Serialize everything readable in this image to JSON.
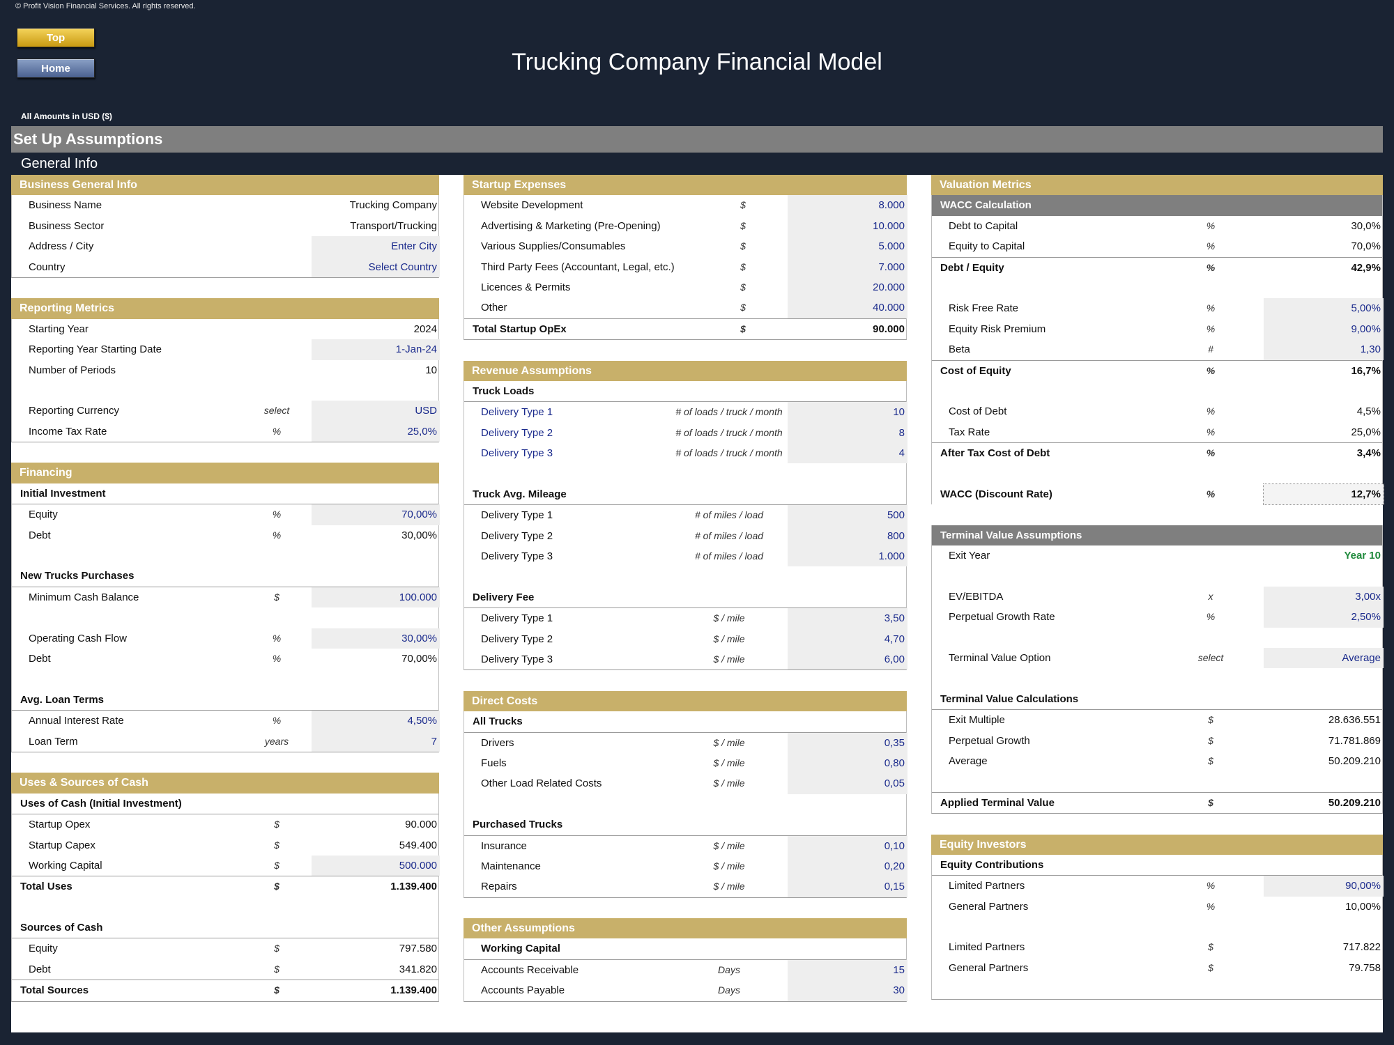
{
  "copyright": "© Profit Vision Financial Services. All rights reserved.",
  "nav": {
    "top": "Top",
    "home": "Home"
  },
  "title": "Trucking Company Financial Model",
  "amounts_label": "All Amounts in  USD ($)",
  "section_title": "Set Up Assumptions",
  "subsection_title": "General Info",
  "business_info": {
    "header": "Business General Info",
    "rows": [
      {
        "label": "Business Name",
        "value": "Trucking Company"
      },
      {
        "label": "Business Sector",
        "value": "Transport/Trucking"
      },
      {
        "label": "Address / City",
        "value": "Enter City"
      },
      {
        "label": "Country",
        "value": "Select Country"
      }
    ]
  },
  "reporting": {
    "header": "Reporting Metrics",
    "rows": [
      {
        "label": "Starting Year",
        "unit": "",
        "value": "2024"
      },
      {
        "label": "Reporting Year Starting Date",
        "unit": "",
        "value": "1-Jan-24"
      },
      {
        "label": "Number of Periods",
        "unit": "",
        "value": "10"
      },
      {
        "label": "Reporting Currency",
        "unit": "select",
        "value": "USD"
      },
      {
        "label": "Income Tax Rate",
        "unit": "%",
        "value": "25,0%"
      }
    ]
  },
  "financing": {
    "header": "Financing",
    "initial_investment": "Initial Investment",
    "equity": {
      "label": "Equity",
      "unit": "%",
      "value": "70,00%"
    },
    "debt": {
      "label": "Debt",
      "unit": "%",
      "value": "30,00%"
    },
    "new_trucks": "New Trucks Purchases",
    "min_cash": {
      "label": "Minimum Cash Balance",
      "unit": "$",
      "value": "100.000"
    },
    "ocf": {
      "label": "Operating Cash Flow",
      "unit": "%",
      "value": "30,00%"
    },
    "debt2": {
      "label": "Debt",
      "unit": "%",
      "value": "70,00%"
    },
    "loan_terms": "Avg. Loan Terms",
    "interest": {
      "label": "Annual Interest Rate",
      "unit": "%",
      "value": "4,50%"
    },
    "loan_term": {
      "label": "Loan Term",
      "unit": "years",
      "value": "7"
    }
  },
  "uses_sources": {
    "header": "Uses & Sources of Cash",
    "uses_title": "Uses of Cash (Initial Investment)",
    "uses": [
      {
        "label": "Startup Opex",
        "unit": "$",
        "value": "90.000"
      },
      {
        "label": "Startup Capex",
        "unit": "$",
        "value": "549.400"
      },
      {
        "label": "Working Capital",
        "unit": "$",
        "value": "500.000"
      }
    ],
    "total_uses": {
      "label": "Total Uses",
      "unit": "$",
      "value": "1.139.400"
    },
    "sources_title": "Sources of Cash",
    "sources": [
      {
        "label": "Equity",
        "unit": "$",
        "value": "797.580"
      },
      {
        "label": "Debt",
        "unit": "$",
        "value": "341.820"
      }
    ],
    "total_sources": {
      "label": "Total Sources",
      "unit": "$",
      "value": "1.139.400"
    }
  },
  "startup": {
    "header": "Startup Expenses",
    "rows": [
      {
        "label": "Website Development",
        "unit": "$",
        "value": "8.000"
      },
      {
        "label": "Advertising & Marketing (Pre-Opening)",
        "unit": "$",
        "value": "10.000"
      },
      {
        "label": "Various Supplies/Consumables",
        "unit": "$",
        "value": "5.000"
      },
      {
        "label": "Third Party Fees (Accountant, Legal, etc.)",
        "unit": "$",
        "value": "7.000"
      },
      {
        "label": "Licences & Permits",
        "unit": "$",
        "value": "20.000"
      },
      {
        "label": "Other",
        "unit": "$",
        "value": "40.000"
      }
    ],
    "total": {
      "label": "Total Startup OpEx",
      "unit": "$",
      "value": "90.000"
    }
  },
  "revenue": {
    "header": "Revenue Assumptions",
    "loads_title": "Truck Loads",
    "loads": [
      {
        "label": "Delivery Type 1",
        "unit": "# of loads / truck / month",
        "value": "10"
      },
      {
        "label": "Delivery Type 2",
        "unit": "# of loads / truck / month",
        "value": "8"
      },
      {
        "label": "Delivery Type 3",
        "unit": "# of loads / truck / month",
        "value": "4"
      }
    ],
    "mileage_title": "Truck Avg. Mileage",
    "mileage": [
      {
        "label": "Delivery Type 1",
        "unit": "# of miles / load",
        "value": "500"
      },
      {
        "label": "Delivery Type 2",
        "unit": "# of miles / load",
        "value": "800"
      },
      {
        "label": "Delivery Type 3",
        "unit": "# of miles / load",
        "value": "1.000"
      }
    ],
    "fee_title": "Delivery Fee",
    "fee": [
      {
        "label": "Delivery Type 1",
        "unit": "$ / mile",
        "value": "3,50"
      },
      {
        "label": "Delivery Type 2",
        "unit": "$ / mile",
        "value": "4,70"
      },
      {
        "label": "Delivery Type 3",
        "unit": "$ / mile",
        "value": "6,00"
      }
    ]
  },
  "direct": {
    "header": "Direct Costs",
    "all_title": "All Trucks",
    "all": [
      {
        "label": "Drivers",
        "unit": "$ / mile",
        "value": "0,35"
      },
      {
        "label": "Fuels",
        "unit": "$ / mile",
        "value": "0,80"
      },
      {
        "label": "Other Load Related Costs",
        "unit": "$ / mile",
        "value": "0,05"
      }
    ],
    "purchased_title": "Purchased Trucks",
    "purchased": [
      {
        "label": "Insurance",
        "unit": "$ / mile",
        "value": "0,10"
      },
      {
        "label": "Maintenance",
        "unit": "$ / mile",
        "value": "0,20"
      },
      {
        "label": "Repairs",
        "unit": "$ / mile",
        "value": "0,15"
      }
    ]
  },
  "other": {
    "header": "Other Assumptions",
    "wc_title": "Working Capital",
    "rows": [
      {
        "label": "Accounts Receivable",
        "unit": "Days",
        "value": "15"
      },
      {
        "label": "Accounts Payable",
        "unit": "Days",
        "value": "30"
      }
    ]
  },
  "valuation": {
    "header": "Valuation Metrics",
    "wacc_title": "WACC Calculation",
    "debt_cap": {
      "label": "Debt to Capital",
      "unit": "%",
      "value": "30,0%"
    },
    "eq_cap": {
      "label": "Equity to Capital",
      "unit": "%",
      "value": "70,0%"
    },
    "de": {
      "label": "Debt / Equity",
      "unit": "%",
      "value": "42,9%"
    },
    "rf": {
      "label": "Risk Free Rate",
      "unit": "%",
      "value": "5,00%"
    },
    "erp": {
      "label": "Equity Risk Premium",
      "unit": "%",
      "value": "9,00%"
    },
    "beta": {
      "label": "Beta",
      "unit": "#",
      "value": "1,30"
    },
    "coe": {
      "label": "Cost of Equity",
      "unit": "%",
      "value": "16,7%"
    },
    "cod": {
      "label": "Cost of Debt",
      "unit": "%",
      "value": "4,5%"
    },
    "tax": {
      "label": "Tax Rate",
      "unit": "%",
      "value": "25,0%"
    },
    "atcod": {
      "label": "After Tax Cost of Debt",
      "unit": "%",
      "value": "3,4%"
    },
    "wacc": {
      "label": "WACC (Discount Rate)",
      "unit": "%",
      "value": "12,7%"
    }
  },
  "terminal": {
    "header": "Terminal Value Assumptions",
    "exit_year": {
      "label": "Exit Year",
      "value": "Year 10"
    },
    "ev": {
      "label": "EV/EBITDA",
      "unit": "x",
      "value": "3,00x"
    },
    "pgr": {
      "label": "Perpetual Growth Rate",
      "unit": "%",
      "value": "2,50%"
    },
    "option": {
      "label": "Terminal Value Option",
      "unit": "select",
      "value": "Average"
    },
    "calc_title": "Terminal Value Calculations",
    "calcs": [
      {
        "label": "Exit Multiple",
        "unit": "$",
        "value": "28.636.551"
      },
      {
        "label": "Perpetual Growth",
        "unit": "$",
        "value": "71.781.869"
      },
      {
        "label": "Average",
        "unit": "$",
        "value": "50.209.210"
      }
    ],
    "applied": {
      "label": "Applied Terminal Value",
      "unit": "$",
      "value": "50.209.210"
    }
  },
  "investors": {
    "header": "Equity Investors",
    "contrib_title": "Equity Contributions",
    "pct": [
      {
        "label": "Limited Partners",
        "unit": "%",
        "value": "90,00%"
      },
      {
        "label": "General Partners",
        "unit": "%",
        "value": "10,00%"
      }
    ],
    "amt": [
      {
        "label": "Limited Partners",
        "unit": "$",
        "value": "717.822"
      },
      {
        "label": "General Partners",
        "unit": "$",
        "value": "79.758"
      }
    ]
  }
}
